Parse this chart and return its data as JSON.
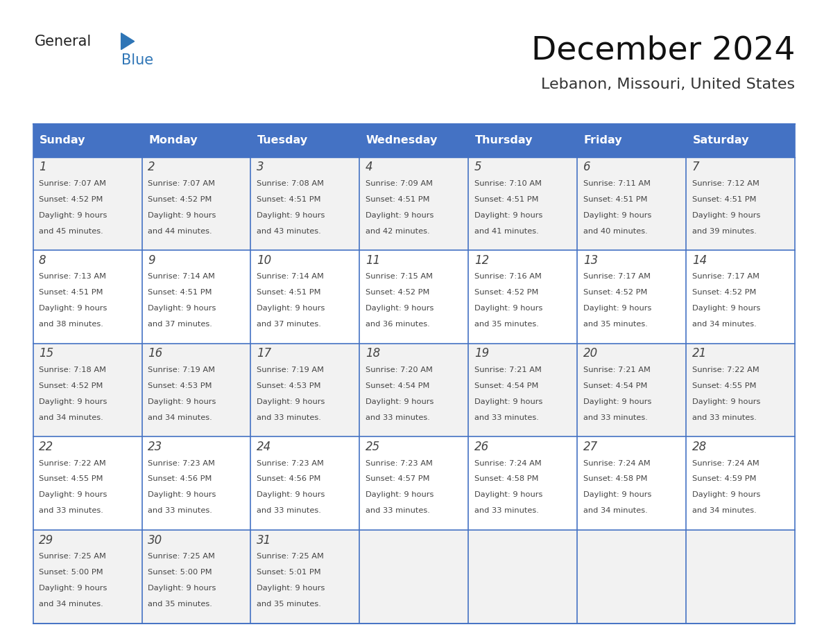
{
  "title": "December 2024",
  "subtitle": "Lebanon, Missouri, United States",
  "header_color": "#4472C4",
  "header_text_color": "#FFFFFF",
  "alt_cell_bg_color": "#F2F2F2",
  "cell_bg_color": "#FFFFFF",
  "border_color": "#4472C4",
  "text_color": "#444444",
  "days_of_week": [
    "Sunday",
    "Monday",
    "Tuesday",
    "Wednesday",
    "Thursday",
    "Friday",
    "Saturday"
  ],
  "calendar_data": [
    [
      {
        "day": 1,
        "sunrise": "7:07 AM",
        "sunset": "4:52 PM",
        "daylight": "9 hours and 45 minutes."
      },
      {
        "day": 2,
        "sunrise": "7:07 AM",
        "sunset": "4:52 PM",
        "daylight": "9 hours and 44 minutes."
      },
      {
        "day": 3,
        "sunrise": "7:08 AM",
        "sunset": "4:51 PM",
        "daylight": "9 hours and 43 minutes."
      },
      {
        "day": 4,
        "sunrise": "7:09 AM",
        "sunset": "4:51 PM",
        "daylight": "9 hours and 42 minutes."
      },
      {
        "day": 5,
        "sunrise": "7:10 AM",
        "sunset": "4:51 PM",
        "daylight": "9 hours and 41 minutes."
      },
      {
        "day": 6,
        "sunrise": "7:11 AM",
        "sunset": "4:51 PM",
        "daylight": "9 hours and 40 minutes."
      },
      {
        "day": 7,
        "sunrise": "7:12 AM",
        "sunset": "4:51 PM",
        "daylight": "9 hours and 39 minutes."
      }
    ],
    [
      {
        "day": 8,
        "sunrise": "7:13 AM",
        "sunset": "4:51 PM",
        "daylight": "9 hours and 38 minutes."
      },
      {
        "day": 9,
        "sunrise": "7:14 AM",
        "sunset": "4:51 PM",
        "daylight": "9 hours and 37 minutes."
      },
      {
        "day": 10,
        "sunrise": "7:14 AM",
        "sunset": "4:51 PM",
        "daylight": "9 hours and 37 minutes."
      },
      {
        "day": 11,
        "sunrise": "7:15 AM",
        "sunset": "4:52 PM",
        "daylight": "9 hours and 36 minutes."
      },
      {
        "day": 12,
        "sunrise": "7:16 AM",
        "sunset": "4:52 PM",
        "daylight": "9 hours and 35 minutes."
      },
      {
        "day": 13,
        "sunrise": "7:17 AM",
        "sunset": "4:52 PM",
        "daylight": "9 hours and 35 minutes."
      },
      {
        "day": 14,
        "sunrise": "7:17 AM",
        "sunset": "4:52 PM",
        "daylight": "9 hours and 34 minutes."
      }
    ],
    [
      {
        "day": 15,
        "sunrise": "7:18 AM",
        "sunset": "4:52 PM",
        "daylight": "9 hours and 34 minutes."
      },
      {
        "day": 16,
        "sunrise": "7:19 AM",
        "sunset": "4:53 PM",
        "daylight": "9 hours and 34 minutes."
      },
      {
        "day": 17,
        "sunrise": "7:19 AM",
        "sunset": "4:53 PM",
        "daylight": "9 hours and 33 minutes."
      },
      {
        "day": 18,
        "sunrise": "7:20 AM",
        "sunset": "4:54 PM",
        "daylight": "9 hours and 33 minutes."
      },
      {
        "day": 19,
        "sunrise": "7:21 AM",
        "sunset": "4:54 PM",
        "daylight": "9 hours and 33 minutes."
      },
      {
        "day": 20,
        "sunrise": "7:21 AM",
        "sunset": "4:54 PM",
        "daylight": "9 hours and 33 minutes."
      },
      {
        "day": 21,
        "sunrise": "7:22 AM",
        "sunset": "4:55 PM",
        "daylight": "9 hours and 33 minutes."
      }
    ],
    [
      {
        "day": 22,
        "sunrise": "7:22 AM",
        "sunset": "4:55 PM",
        "daylight": "9 hours and 33 minutes."
      },
      {
        "day": 23,
        "sunrise": "7:23 AM",
        "sunset": "4:56 PM",
        "daylight": "9 hours and 33 minutes."
      },
      {
        "day": 24,
        "sunrise": "7:23 AM",
        "sunset": "4:56 PM",
        "daylight": "9 hours and 33 minutes."
      },
      {
        "day": 25,
        "sunrise": "7:23 AM",
        "sunset": "4:57 PM",
        "daylight": "9 hours and 33 minutes."
      },
      {
        "day": 26,
        "sunrise": "7:24 AM",
        "sunset": "4:58 PM",
        "daylight": "9 hours and 33 minutes."
      },
      {
        "day": 27,
        "sunrise": "7:24 AM",
        "sunset": "4:58 PM",
        "daylight": "9 hours and 34 minutes."
      },
      {
        "day": 28,
        "sunrise": "7:24 AM",
        "sunset": "4:59 PM",
        "daylight": "9 hours and 34 minutes."
      }
    ],
    [
      {
        "day": 29,
        "sunrise": "7:25 AM",
        "sunset": "5:00 PM",
        "daylight": "9 hours and 34 minutes."
      },
      {
        "day": 30,
        "sunrise": "7:25 AM",
        "sunset": "5:00 PM",
        "daylight": "9 hours and 35 minutes."
      },
      {
        "day": 31,
        "sunrise": "7:25 AM",
        "sunset": "5:01 PM",
        "daylight": "9 hours and 35 minutes."
      },
      null,
      null,
      null,
      null
    ]
  ]
}
